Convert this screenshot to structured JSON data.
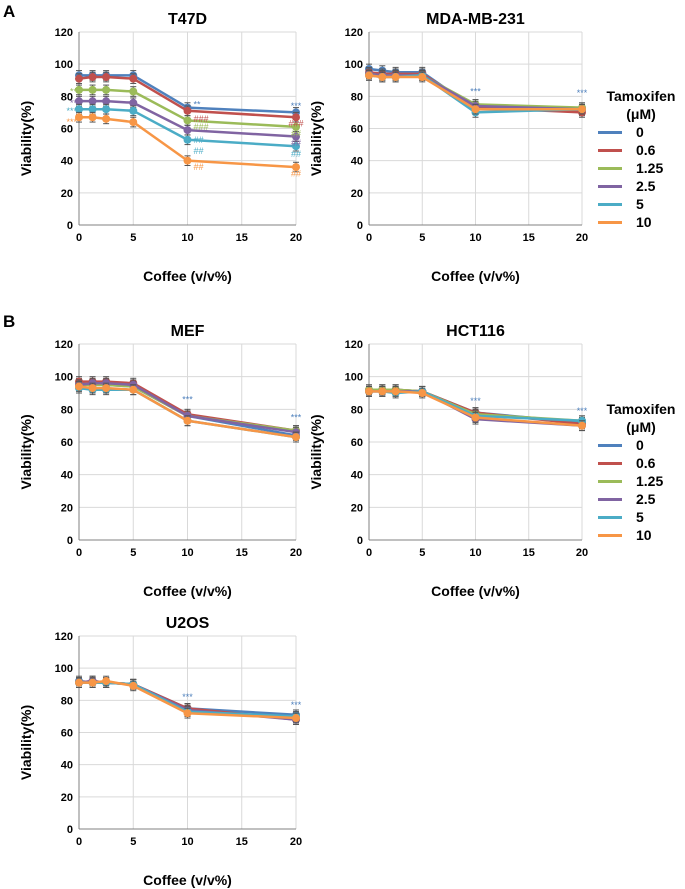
{
  "panel_labels": [
    "A",
    "B"
  ],
  "legend": {
    "title_line1": "Tamoxifen",
    "title_line2": "(μM)",
    "entries": [
      "0",
      "0.6",
      "1.25",
      "2.5",
      "5",
      "10"
    ]
  },
  "series_colors": [
    "#4f81bd",
    "#c0504d",
    "#9bbb59",
    "#8064a2",
    "#4bacc6",
    "#f79646"
  ],
  "chart_data": [
    {
      "type": "line",
      "title": "T47D",
      "xlabel": "Coffee (v/v%)",
      "ylabel": "Viability(%)",
      "xlim": [
        0,
        20
      ],
      "ylim": [
        0,
        120
      ],
      "xticks": [
        0,
        5,
        10,
        15,
        20
      ],
      "yticks": [
        0,
        20,
        40,
        60,
        80,
        100,
        120
      ],
      "x": [
        0,
        1.25,
        2.5,
        5,
        10,
        20
      ],
      "series": [
        {
          "name": "0",
          "values": [
            93,
            93,
            93,
            93,
            73,
            70
          ]
        },
        {
          "name": "0.6",
          "values": [
            91,
            92,
            92,
            91,
            71,
            67
          ]
        },
        {
          "name": "1.25",
          "values": [
            84,
            84,
            84,
            83,
            65,
            61
          ]
        },
        {
          "name": "2.5",
          "values": [
            77,
            77,
            77,
            76,
            59,
            55
          ]
        },
        {
          "name": "5",
          "values": [
            72,
            72,
            72,
            71,
            53,
            49
          ]
        },
        {
          "name": "10",
          "values": [
            67,
            67,
            66,
            64,
            40,
            36
          ]
        }
      ],
      "annotations": [
        {
          "text": "**",
          "x": 0,
          "y": 83,
          "series": 2,
          "side": "left"
        },
        {
          "text": "**",
          "x": 0,
          "y": 76,
          "series": 3,
          "side": "left"
        },
        {
          "text": "***",
          "x": 0,
          "y": 71,
          "series": 4,
          "side": "left"
        },
        {
          "text": "***",
          "x": 0,
          "y": 64,
          "series": 5,
          "side": "left"
        },
        {
          "text": "**",
          "x": 10,
          "y": 75,
          "series": 0,
          "side": "right"
        },
        {
          "text": "###",
          "x": 10,
          "y": 66,
          "series": 1,
          "side": "right"
        },
        {
          "text": "###",
          "x": 10,
          "y": 61,
          "series": 2,
          "side": "right"
        },
        {
          "text": "##",
          "x": 10,
          "y": 53,
          "series": 4,
          "side": "right"
        },
        {
          "text": "##",
          "x": 10,
          "y": 46,
          "series": 4,
          "side": "right"
        },
        {
          "text": "##",
          "x": 10,
          "y": 36,
          "series": 5,
          "side": "right"
        },
        {
          "text": "***",
          "x": 20,
          "y": 74,
          "series": 0,
          "side": "center"
        },
        {
          "text": "###",
          "x": 20,
          "y": 63,
          "series": 1,
          "side": "center"
        },
        {
          "text": "##",
          "x": 20,
          "y": 57,
          "series": 2,
          "side": "center"
        },
        {
          "text": "##",
          "x": 20,
          "y": 51,
          "series": 3,
          "side": "center"
        },
        {
          "text": "##",
          "x": 20,
          "y": 44,
          "series": 4,
          "side": "center"
        },
        {
          "text": "##",
          "x": 20,
          "y": 32,
          "series": 5,
          "side": "center"
        }
      ]
    },
    {
      "type": "line",
      "title": "MDA-MB-231",
      "xlabel": "Coffee (v/v%)",
      "ylabel": "Viability(%)",
      "xlim": [
        0,
        20
      ],
      "ylim": [
        0,
        120
      ],
      "xticks": [
        0,
        5,
        10,
        15,
        20
      ],
      "yticks": [
        0,
        20,
        40,
        60,
        80,
        100,
        120
      ],
      "x": [
        0,
        1.25,
        2.5,
        5,
        10,
        20
      ],
      "series": [
        {
          "name": "0",
          "values": [
            97,
            96,
            95,
            95,
            72,
            71
          ]
        },
        {
          "name": "0.6",
          "values": [
            95,
            94,
            94,
            94,
            73,
            70
          ]
        },
        {
          "name": "1.25",
          "values": [
            94,
            93,
            93,
            93,
            75,
            73
          ]
        },
        {
          "name": "2.5",
          "values": [
            94,
            93,
            93,
            93,
            74,
            72
          ]
        },
        {
          "name": "5",
          "values": [
            93,
            92,
            92,
            93,
            70,
            72
          ]
        },
        {
          "name": "10",
          "values": [
            93,
            92,
            92,
            92,
            72,
            72
          ]
        }
      ],
      "annotations": [
        {
          "text": "***",
          "x": 10,
          "y": 83,
          "series": 0,
          "side": "center"
        },
        {
          "text": "***",
          "x": 20,
          "y": 82,
          "series": 0,
          "side": "center"
        }
      ]
    },
    {
      "type": "line",
      "title": "MEF",
      "xlabel": "Coffee (v/v%)",
      "ylabel": "Viability(%)",
      "xlim": [
        0,
        20
      ],
      "ylim": [
        0,
        120
      ],
      "xticks": [
        0,
        5,
        10,
        15,
        20
      ],
      "yticks": [
        0,
        20,
        40,
        60,
        80,
        100,
        120
      ],
      "x": [
        0,
        1.25,
        2.5,
        5,
        10,
        20
      ],
      "series": [
        {
          "name": "0",
          "values": [
            96,
            95,
            95,
            94,
            76,
            64
          ]
        },
        {
          "name": "0.6",
          "values": [
            97,
            97,
            97,
            96,
            77,
            67
          ]
        },
        {
          "name": "1.25",
          "values": [
            95,
            95,
            95,
            94,
            76,
            67
          ]
        },
        {
          "name": "2.5",
          "values": [
            95,
            96,
            96,
            95,
            76,
            66
          ]
        },
        {
          "name": "5",
          "values": [
            93,
            92,
            92,
            92,
            73,
            63
          ]
        },
        {
          "name": "10",
          "values": [
            94,
            93,
            93,
            92,
            73,
            63
          ]
        }
      ],
      "annotations": [
        {
          "text": "***",
          "x": 10,
          "y": 86,
          "series": 0,
          "side": "center"
        },
        {
          "text": "***",
          "x": 20,
          "y": 75,
          "series": 0,
          "side": "center"
        }
      ]
    },
    {
      "type": "line",
      "title": "HCT116",
      "xlabel": "Coffee (v/v%)",
      "ylabel": "Viability(%)",
      "xlim": [
        0,
        20
      ],
      "ylim": [
        0,
        120
      ],
      "xticks": [
        0,
        5,
        10,
        15,
        20
      ],
      "yticks": [
        0,
        20,
        40,
        60,
        80,
        100,
        120
      ],
      "x": [
        0,
        1.25,
        2.5,
        5,
        10,
        20
      ],
      "series": [
        {
          "name": "0",
          "values": [
            91,
            92,
            92,
            91,
            78,
            72
          ]
        },
        {
          "name": "0.6",
          "values": [
            92,
            92,
            92,
            91,
            78,
            71
          ]
        },
        {
          "name": "1.25",
          "values": [
            92,
            92,
            92,
            91,
            77,
            73
          ]
        },
        {
          "name": "2.5",
          "values": [
            91,
            91,
            91,
            91,
            74,
            70
          ]
        },
        {
          "name": "5",
          "values": [
            91,
            91,
            90,
            91,
            76,
            73
          ]
        },
        {
          "name": "10",
          "values": [
            91,
            91,
            91,
            90,
            75,
            70
          ]
        }
      ],
      "annotations": [
        {
          "text": "***",
          "x": 10,
          "y": 85,
          "series": 0,
          "side": "center"
        },
        {
          "text": "***",
          "x": 20,
          "y": 79,
          "series": 0,
          "side": "center"
        }
      ]
    },
    {
      "type": "line",
      "title": "U2OS",
      "xlabel": "Coffee (v/v%)",
      "ylabel": "Viability(%)",
      "xlim": [
        0,
        20
      ],
      "ylim": [
        0,
        120
      ],
      "xticks": [
        0,
        5,
        10,
        15,
        20
      ],
      "yticks": [
        0,
        20,
        40,
        60,
        80,
        100,
        120
      ],
      "x": [
        0,
        1.25,
        2.5,
        5,
        10,
        20
      ],
      "series": [
        {
          "name": "0",
          "values": [
            92,
            91,
            91,
            90,
            75,
            71
          ]
        },
        {
          "name": "0.6",
          "values": [
            91,
            92,
            91,
            90,
            75,
            68
          ]
        },
        {
          "name": "1.25",
          "values": [
            91,
            91,
            91,
            90,
            73,
            69
          ]
        },
        {
          "name": "2.5",
          "values": [
            91,
            92,
            91,
            90,
            74,
            68
          ]
        },
        {
          "name": "5",
          "values": [
            91,
            91,
            91,
            90,
            73,
            70
          ]
        },
        {
          "name": "10",
          "values": [
            91,
            91,
            92,
            89,
            72,
            69
          ]
        }
      ],
      "annotations": [
        {
          "text": "***",
          "x": 10,
          "y": 82,
          "series": 0,
          "side": "center"
        },
        {
          "text": "***",
          "x": 20,
          "y": 77,
          "series": 0,
          "side": "center"
        }
      ]
    }
  ]
}
